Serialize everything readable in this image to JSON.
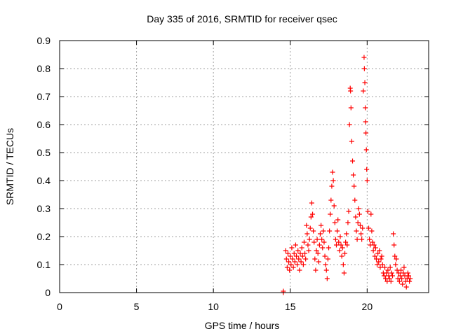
{
  "chart_data": {
    "type": "scatter",
    "title": "Day 335 of 2016, SRMTID for receiver qsec",
    "xlabel": "GPS time / hours",
    "ylabel": "SRMTID / TECUs",
    "xlim": [
      0,
      24
    ],
    "ylim": [
      0,
      0.9
    ],
    "xticks": [
      "0",
      "5",
      "10",
      "15",
      "20"
    ],
    "yticks": [
      "0",
      "0.1",
      "0.2",
      "0.3",
      "0.4",
      "0.5",
      "0.6",
      "0.7",
      "0.8",
      "0.9"
    ],
    "xtick_values": [
      0,
      5,
      10,
      15,
      20
    ],
    "ytick_values": [
      0,
      0.1,
      0.2,
      0.3,
      0.4,
      0.5,
      0.6,
      0.7,
      0.8,
      0.9
    ],
    "grid": true,
    "marker": "plus",
    "color": "#ff0000",
    "series": [
      {
        "name": "SRMTID",
        "points": [
          [
            14.55,
            0.0
          ],
          [
            14.55,
            0.005
          ],
          [
            14.7,
            0.15
          ],
          [
            14.75,
            0.12
          ],
          [
            14.8,
            0.09
          ],
          [
            14.85,
            0.14
          ],
          [
            14.9,
            0.11
          ],
          [
            14.95,
            0.08
          ],
          [
            15.0,
            0.13
          ],
          [
            15.05,
            0.1
          ],
          [
            15.1,
            0.16
          ],
          [
            15.15,
            0.12
          ],
          [
            15.2,
            0.09
          ],
          [
            15.25,
            0.14
          ],
          [
            15.3,
            0.11
          ],
          [
            15.35,
            0.17
          ],
          [
            15.4,
            0.13
          ],
          [
            15.45,
            0.1
          ],
          [
            15.5,
            0.15
          ],
          [
            15.55,
            0.12
          ],
          [
            15.6,
            0.08
          ],
          [
            15.65,
            0.14
          ],
          [
            15.7,
            0.11
          ],
          [
            15.75,
            0.16
          ],
          [
            15.8,
            0.13
          ],
          [
            15.85,
            0.1
          ],
          [
            15.9,
            0.18
          ],
          [
            15.95,
            0.14
          ],
          [
            16.0,
            0.12
          ],
          [
            16.05,
            0.24
          ],
          [
            16.1,
            0.21
          ],
          [
            16.15,
            0.17
          ],
          [
            16.2,
            0.15
          ],
          [
            16.25,
            0.19
          ],
          [
            16.3,
            0.23
          ],
          [
            16.35,
            0.27
          ],
          [
            16.4,
            0.32
          ],
          [
            16.45,
            0.28
          ],
          [
            16.5,
            0.22
          ],
          [
            16.55,
            0.18
          ],
          [
            16.6,
            0.12
          ],
          [
            16.65,
            0.08
          ],
          [
            16.7,
            0.15
          ],
          [
            16.75,
            0.19
          ],
          [
            16.8,
            0.14
          ],
          [
            16.85,
            0.11
          ],
          [
            16.9,
            0.17
          ],
          [
            16.95,
            0.21
          ],
          [
            17.0,
            0.24
          ],
          [
            17.05,
            0.19
          ],
          [
            17.1,
            0.16
          ],
          [
            17.15,
            0.22
          ],
          [
            17.2,
            0.18
          ],
          [
            17.25,
            0.13
          ],
          [
            17.3,
            0.1
          ],
          [
            17.35,
            0.08
          ],
          [
            17.4,
            0.05
          ],
          [
            17.45,
            0.12
          ],
          [
            17.5,
            0.16
          ],
          [
            17.55,
            0.22
          ],
          [
            17.6,
            0.28
          ],
          [
            17.65,
            0.33
          ],
          [
            17.7,
            0.38
          ],
          [
            17.75,
            0.43
          ],
          [
            17.8,
            0.4
          ],
          [
            17.85,
            0.31
          ],
          [
            17.9,
            0.25
          ],
          [
            17.95,
            0.19
          ],
          [
            18.0,
            0.17
          ],
          [
            18.05,
            0.22
          ],
          [
            18.1,
            0.26
          ],
          [
            18.15,
            0.18
          ],
          [
            18.2,
            0.15
          ],
          [
            18.25,
            0.2
          ],
          [
            18.3,
            0.17
          ],
          [
            18.35,
            0.13
          ],
          [
            18.4,
            0.16
          ],
          [
            18.45,
            0.1
          ],
          [
            18.5,
            0.07
          ],
          [
            18.55,
            0.14
          ],
          [
            18.6,
            0.18
          ],
          [
            18.65,
            0.21
          ],
          [
            18.7,
            0.17
          ],
          [
            18.75,
            0.25
          ],
          [
            18.8,
            0.29
          ],
          [
            18.85,
            0.6
          ],
          [
            18.9,
            0.73
          ],
          [
            18.92,
            0.72
          ],
          [
            18.95,
            0.66
          ],
          [
            19.0,
            0.54
          ],
          [
            19.05,
            0.47
          ],
          [
            19.1,
            0.42
          ],
          [
            19.15,
            0.38
          ],
          [
            19.2,
            0.33
          ],
          [
            19.25,
            0.27
          ],
          [
            19.3,
            0.22
          ],
          [
            19.35,
            0.19
          ],
          [
            19.4,
            0.25
          ],
          [
            19.45,
            0.3
          ],
          [
            19.5,
            0.28
          ],
          [
            19.55,
            0.24
          ],
          [
            19.6,
            0.21
          ],
          [
            19.65,
            0.19
          ],
          [
            19.7,
            0.23
          ],
          [
            19.75,
            0.72
          ],
          [
            19.8,
            0.84
          ],
          [
            19.82,
            0.8
          ],
          [
            19.85,
            0.75
          ],
          [
            19.88,
            0.66
          ],
          [
            19.9,
            0.61
          ],
          [
            19.92,
            0.57
          ],
          [
            19.95,
            0.51
          ],
          [
            19.97,
            0.44
          ],
          [
            20.0,
            0.4
          ],
          [
            20.05,
            0.29
          ],
          [
            20.1,
            0.23
          ],
          [
            20.15,
            0.19
          ],
          [
            20.2,
            0.17
          ],
          [
            20.25,
            0.28
          ],
          [
            20.3,
            0.22
          ],
          [
            20.35,
            0.18
          ],
          [
            20.4,
            0.15
          ],
          [
            20.45,
            0.17
          ],
          [
            20.5,
            0.13
          ],
          [
            20.55,
            0.16
          ],
          [
            20.6,
            0.12
          ],
          [
            20.65,
            0.1
          ],
          [
            20.7,
            0.14
          ],
          [
            20.75,
            0.11
          ],
          [
            20.8,
            0.15
          ],
          [
            20.85,
            0.09
          ],
          [
            20.9,
            0.12
          ],
          [
            20.95,
            0.13
          ],
          [
            21.0,
            0.1
          ],
          [
            21.05,
            0.07
          ],
          [
            21.1,
            0.06
          ],
          [
            21.15,
            0.09
          ],
          [
            21.2,
            0.05
          ],
          [
            21.25,
            0.07
          ],
          [
            21.3,
            0.04
          ],
          [
            21.35,
            0.08
          ],
          [
            21.4,
            0.06
          ],
          [
            21.45,
            0.05
          ],
          [
            21.5,
            0.09
          ],
          [
            21.55,
            0.04
          ],
          [
            21.6,
            0.07
          ],
          [
            21.65,
            0.06
          ],
          [
            21.7,
            0.21
          ],
          [
            21.75,
            0.17
          ],
          [
            21.8,
            0.13
          ],
          [
            21.85,
            0.1
          ],
          [
            21.9,
            0.12
          ],
          [
            21.95,
            0.08
          ],
          [
            22.0,
            0.05
          ],
          [
            22.05,
            0.07
          ],
          [
            22.1,
            0.04
          ],
          [
            22.15,
            0.06
          ],
          [
            22.2,
            0.08
          ],
          [
            22.25,
            0.05
          ],
          [
            22.3,
            0.03
          ],
          [
            22.35,
            0.07
          ],
          [
            22.4,
            0.09
          ],
          [
            22.45,
            0.06
          ],
          [
            22.5,
            0.04
          ],
          [
            22.55,
            0.02
          ],
          [
            22.6,
            0.05
          ],
          [
            22.65,
            0.07
          ],
          [
            22.7,
            0.06
          ],
          [
            22.75,
            0.04
          ],
          [
            22.8,
            0.05
          ]
        ]
      }
    ]
  }
}
